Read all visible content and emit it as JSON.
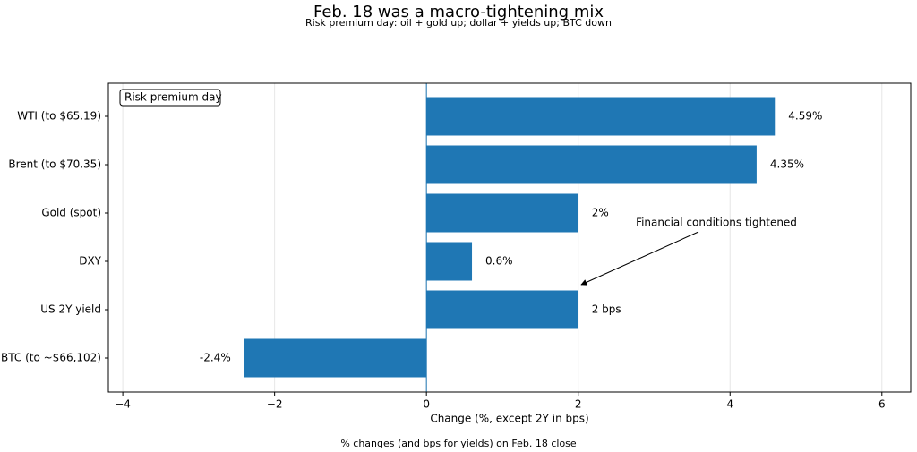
{
  "chart_data": {
    "type": "barh",
    "title": "Feb. 18 was a macro-tightening mix",
    "subtitle": "Risk premium day: oil + gold up; dollar + yields up; BTC down",
    "xlabel": "Change (%, except 2Y in bps)",
    "footer": "% changes (and bps for yields) on Feb. 18 close",
    "box_label": "Risk premium day",
    "annotation": "Financial conditions tightened",
    "categories": [
      "WTI (to $65.19)",
      "Brent (to $70.35)",
      "Gold (spot)",
      "DXY",
      "US 2Y yield",
      "BTC (to ~$66,102)"
    ],
    "values": [
      4.59,
      4.35,
      2,
      0.6,
      2,
      -2.4
    ],
    "value_labels": [
      "4.59%",
      "4.35%",
      "2%",
      "0.6%",
      "2 bps",
      "-2.4%"
    ],
    "color": "#1f77b4",
    "xlim": [
      -4.19,
      6.38
    ],
    "xticks": [
      {
        "value": -4,
        "label": "−4"
      },
      {
        "value": -2,
        "label": "−2"
      },
      0,
      2,
      4,
      6
    ],
    "grid": true
  }
}
